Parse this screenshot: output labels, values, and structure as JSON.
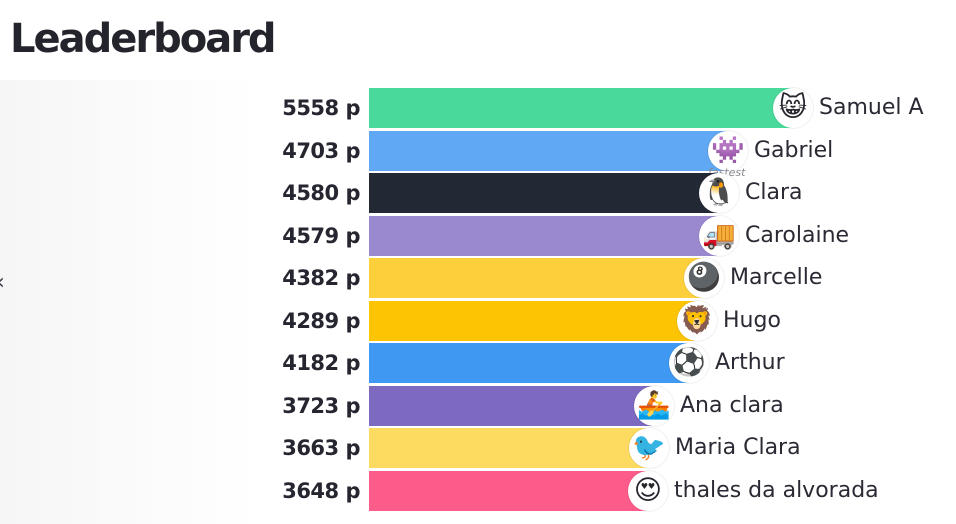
{
  "header": {
    "title": "Leaderboard"
  },
  "controls": {
    "collapse_glyph": "‹"
  },
  "leaderboard": {
    "max_points": 5558,
    "entries": [
      {
        "rank": 1,
        "name": "Samuel A",
        "score_text": "5558 p",
        "points": 5558,
        "bar_color": "#49d99a",
        "avatar_icon": "grinning-cat-icon",
        "avatar_glyph": "😸",
        "tag": ""
      },
      {
        "rank": 2,
        "name": "Gabriel",
        "score_text": "4703 p",
        "points": 4703,
        "bar_color": "#61a8f4",
        "avatar_icon": "space-invader-icon",
        "avatar_glyph": "👾",
        "tag": "fastest"
      },
      {
        "rank": 3,
        "name": "Clara",
        "score_text": "4580 p",
        "points": 4580,
        "bar_color": "#232835",
        "avatar_icon": "penguin-icon",
        "avatar_glyph": "🐧",
        "tag": ""
      },
      {
        "rank": 4,
        "name": "Carolaine",
        "score_text": "4579 p",
        "points": 4579,
        "bar_color": "#9b89cf",
        "avatar_icon": "delivery-truck-icon",
        "avatar_glyph": "🚚",
        "tag": ""
      },
      {
        "rank": 5,
        "name": "Marcelle",
        "score_text": "4382 p",
        "points": 4382,
        "bar_color": "#fdd03b",
        "avatar_icon": "billiard-ball-icon",
        "avatar_glyph": "🎱",
        "tag": ""
      },
      {
        "rank": 6,
        "name": "Hugo",
        "score_text": "4289 p",
        "points": 4289,
        "bar_color": "#fdc403",
        "avatar_icon": "lion-icon",
        "avatar_glyph": "🦁",
        "tag": ""
      },
      {
        "rank": 7,
        "name": "Arthur",
        "score_text": "4182 p",
        "points": 4182,
        "bar_color": "#3f98f2",
        "avatar_icon": "soccer-ball-icon",
        "avatar_glyph": "⚽",
        "tag": ""
      },
      {
        "rank": 8,
        "name": "Ana clara",
        "score_text": "3723 p",
        "points": 3723,
        "bar_color": "#7e69c1",
        "avatar_icon": "rowing-boat-icon",
        "avatar_glyph": "🚣",
        "tag": ""
      },
      {
        "rank": 9,
        "name": "Maria Clara",
        "score_text": "3663 p",
        "points": 3663,
        "bar_color": "#fddb60",
        "avatar_icon": "red-bird-icon",
        "avatar_glyph": "🐦",
        "tag": ""
      },
      {
        "rank": 10,
        "name": "thales da alvorada",
        "score_text": "3648 p",
        "points": 3648,
        "bar_color": "#fd5b8a",
        "avatar_icon": "heart-eyes-face-icon",
        "avatar_glyph": "😍",
        "tag": ""
      }
    ]
  }
}
